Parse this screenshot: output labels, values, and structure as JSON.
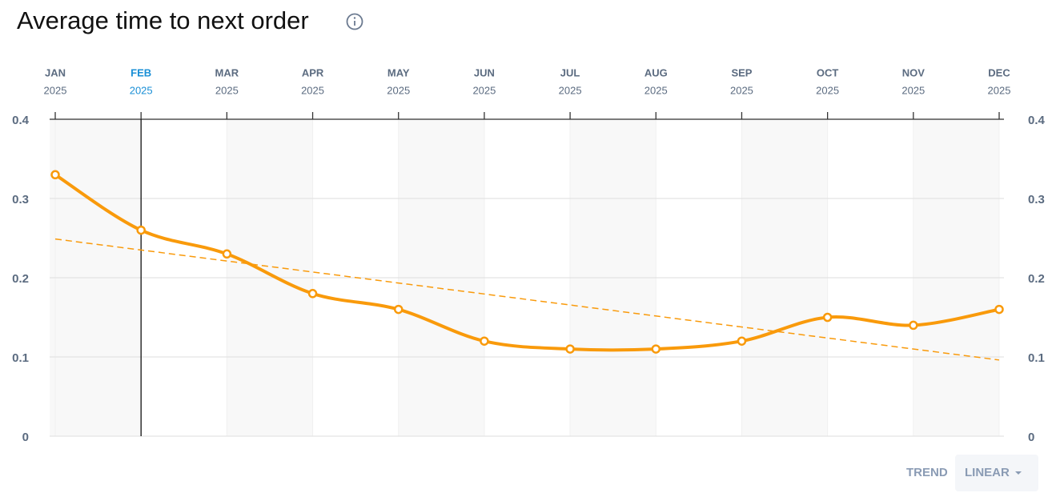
{
  "chart_data": {
    "type": "line",
    "title": "Average time to next order",
    "categories": [
      "JAN",
      "FEB",
      "MAR",
      "APR",
      "MAY",
      "JUN",
      "JUL",
      "AUG",
      "SEP",
      "OCT",
      "NOV",
      "DEC"
    ],
    "category_years": [
      "2025",
      "2025",
      "2025",
      "2025",
      "2025",
      "2025",
      "2025",
      "2025",
      "2025",
      "2025",
      "2025",
      "2025"
    ],
    "series": [
      {
        "name": "Average time to next order",
        "color": "#f99a0b",
        "values": [
          0.33,
          0.26,
          0.23,
          0.18,
          0.16,
          0.12,
          0.11,
          0.11,
          0.12,
          0.15,
          0.14,
          0.16
        ]
      }
    ],
    "ylim": [
      0,
      0.4
    ],
    "yticks": [
      0,
      0.1,
      0.2,
      0.3,
      0.4
    ],
    "grid": true,
    "highlight_index": 1,
    "highlight_color": "#1a8fd6",
    "trend": {
      "label": "TREND",
      "mode": "LINEAR"
    }
  }
}
